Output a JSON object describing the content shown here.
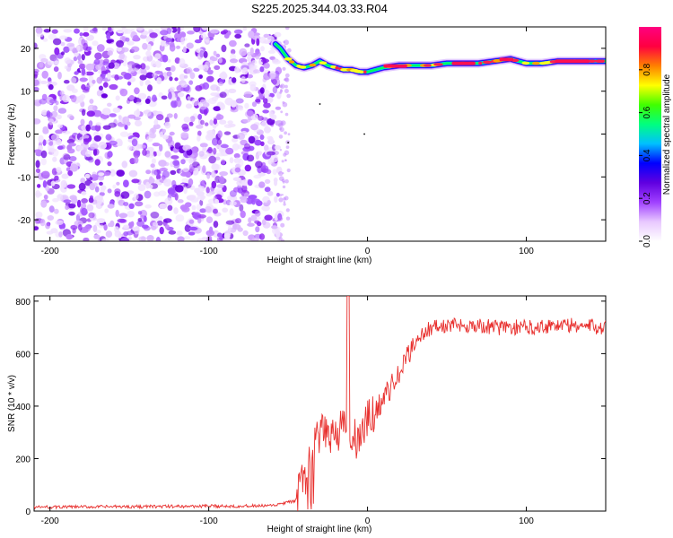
{
  "title": "S225.2025.344.03.33.R04",
  "chart_data": [
    {
      "type": "heatmap",
      "title": "S225.2025.344.03.33.R04",
      "xlabel": "Height of straight line (km)",
      "ylabel": "Frequency (Hz)",
      "xlim": [
        -210,
        150
      ],
      "ylim": [
        -25,
        25
      ],
      "xticks": [
        -200,
        -100,
        0,
        100
      ],
      "yticks": [
        20,
        10,
        0,
        -10,
        -20
      ],
      "noise_region_x": [
        -210,
        -55
      ],
      "signal_track": {
        "x": [
          -58,
          -55,
          -50,
          -45,
          -40,
          -35,
          -30,
          -25,
          -20,
          -15,
          -10,
          -5,
          0,
          5,
          10,
          20,
          30,
          40,
          50,
          60,
          70,
          80,
          90,
          100,
          110,
          120,
          130,
          140,
          150
        ],
        "freq": [
          21,
          20,
          17.5,
          16,
          15.5,
          16,
          17,
          16,
          15.5,
          15,
          15,
          14.5,
          14.5,
          15,
          15.5,
          16,
          16,
          16,
          16.5,
          16.5,
          16.5,
          17,
          17.5,
          16.5,
          16.5,
          17,
          17,
          17,
          17
        ]
      },
      "colorbar": {
        "label": "Normalized spectral amplitude",
        "range": [
          0.0,
          1.0
        ],
        "ticks": [
          "0.0",
          "0.2",
          "0.4",
          "0.6",
          "0.8"
        ],
        "colors": [
          "#ffffff",
          "#e8c8ff",
          "#a040ff",
          "#6000e0",
          "#0000ff",
          "#00c0ff",
          "#00ff80",
          "#40ff00",
          "#ffff00",
          "#ff8000",
          "#ff0040",
          "#ff0080"
        ]
      }
    },
    {
      "type": "line",
      "xlabel": "Height of straight line (km)",
      "ylabel": "SNR (10 * v/v)",
      "xlim": [
        -210,
        150
      ],
      "ylim": [
        0,
        820
      ],
      "xticks": [
        -200,
        -100,
        0,
        100
      ],
      "yticks": [
        0,
        200,
        400,
        600,
        800
      ],
      "series": [
        {
          "name": "SNR",
          "color": "#e8302e",
          "x": [
            -210,
            -60,
            -45,
            -40,
            -35,
            -30,
            -25,
            -20,
            -15,
            -10,
            -5,
            0,
            5,
            10,
            20,
            30,
            40,
            60,
            80,
            100,
            120,
            150
          ],
          "y": [
            15,
            20,
            40,
            120,
            220,
            280,
            300,
            300,
            320,
            260,
            280,
            340,
            380,
            430,
            520,
            650,
            700,
            710,
            700,
            700,
            710,
            700
          ]
        }
      ],
      "annotations": [
        {
          "x": -12,
          "y": 820,
          "label": "spike"
        }
      ]
    }
  ]
}
